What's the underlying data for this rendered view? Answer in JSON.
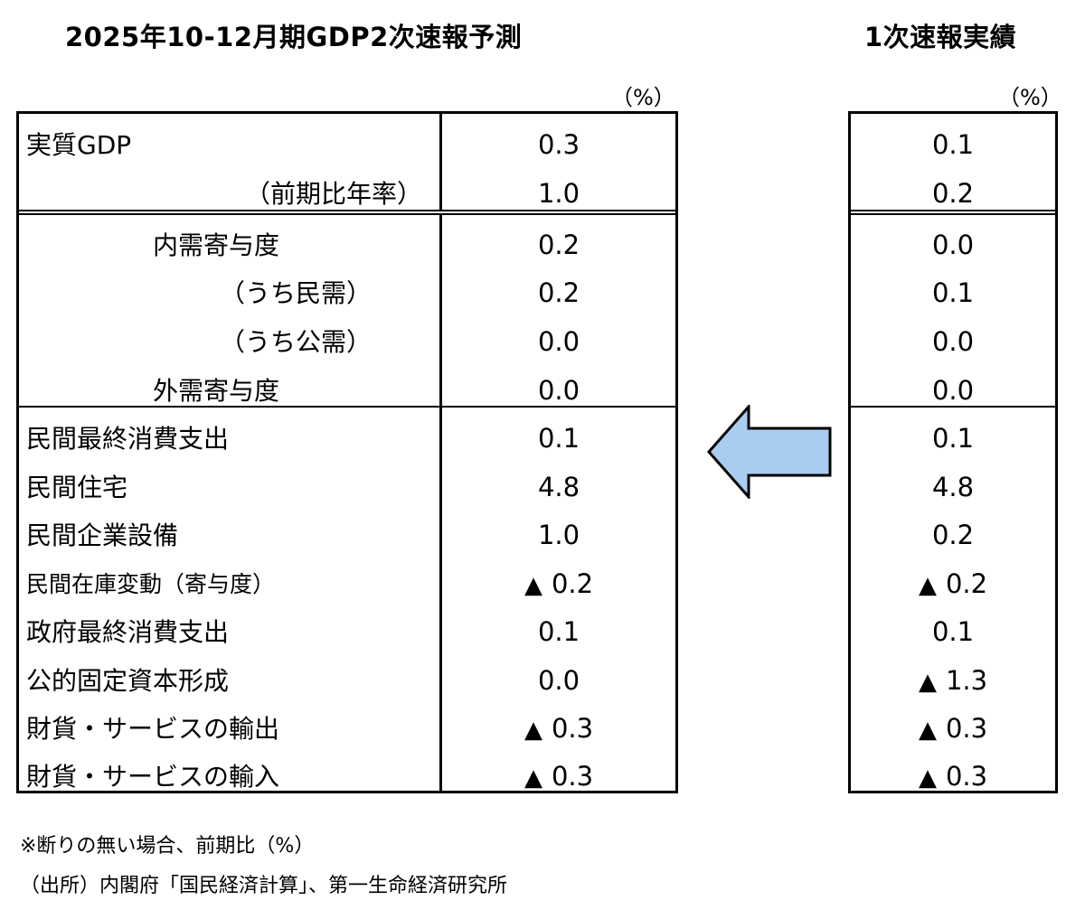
{
  "titles": {
    "main": "2025年10-12月期GDP2次速報予測",
    "first": "1次速報実績"
  },
  "unit_label": "（%）",
  "negative_marker": "▲",
  "arrow_color": "#A9CDF0",
  "rows": [
    {
      "label": "実質GDP",
      "indent": 8,
      "forecast": "0.3",
      "actual": "0.1"
    },
    {
      "label": "（前期比年率）",
      "indent": 250,
      "forecast": "1.0",
      "actual": "0.2"
    },
    {
      "label": "内需寄与度",
      "indent": 148,
      "forecast": "0.2",
      "actual": "0.0"
    },
    {
      "label": "（うち民需）",
      "indent": 222,
      "forecast": "0.2",
      "actual": "0.1"
    },
    {
      "label": "（うち公需）",
      "indent": 222,
      "forecast": "0.0",
      "actual": "0.0"
    },
    {
      "label": "外需寄与度",
      "indent": 148,
      "forecast": "0.0",
      "actual": "0.0"
    },
    {
      "label": "民間最終消費支出",
      "indent": 8,
      "forecast": "0.1",
      "actual": "0.1"
    },
    {
      "label": "民間住宅",
      "indent": 8,
      "forecast": "4.8",
      "actual": "4.8"
    },
    {
      "label": "民間企業設備",
      "indent": 8,
      "forecast": "1.0",
      "actual": "0.2"
    },
    {
      "label": "民間在庫変動（寄与度）",
      "indent": 8,
      "small": true,
      "forecast_neg": true,
      "forecast": "0.2",
      "actual_neg": true,
      "actual": "0.2"
    },
    {
      "label": "政府最終消費支出",
      "indent": 8,
      "forecast": "0.1",
      "actual": "0.1"
    },
    {
      "label": "公的固定資本形成",
      "indent": 8,
      "forecast": "0.0",
      "actual_neg": true,
      "actual": "1.3"
    },
    {
      "label": "財貨・サービスの輸出",
      "indent": 8,
      "forecast_neg": true,
      "forecast": "0.3",
      "actual_neg": true,
      "actual": "0.3"
    },
    {
      "label": "財貨・サービスの輸入",
      "indent": 8,
      "forecast_neg": true,
      "forecast": "0.3",
      "actual_neg": true,
      "actual": "0.3"
    }
  ],
  "notes": {
    "note1": "※断りの無い場合、前期比（%）",
    "note2": "（出所）内閣府「国民経済計算」、第一生命経済研究所"
  }
}
